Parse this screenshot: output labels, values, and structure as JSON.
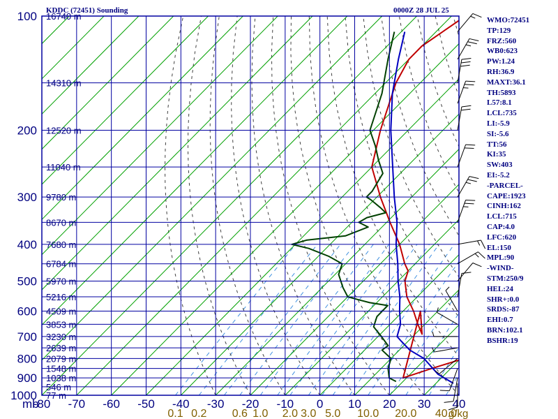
{
  "header": {
    "title": "KDDC (72451) Sounding",
    "valid": "0000Z 28 JUL 25"
  },
  "stats": [
    "WMO:72451",
    "TP:129",
    "FRZ:560",
    "WB0:623",
    "PW:1.24",
    "RH:36.9",
    "MAXT:36.1",
    "TH:5893",
    "L57:8.1",
    "LCL:735",
    "LI:-5.9",
    "SI:-5.6",
    "TT:56",
    "KI:35",
    "SW:403",
    "EI:-5.2",
    "-PARCEL-",
    "CAPE:1923",
    "CINH:162",
    "LCL:715",
    "CAP:4.0",
    "LFC:620",
    "EL:150",
    "MPL:90",
    "-WIND-",
    "STM:250/9",
    "HEL:24",
    "SHR+:0.0",
    "SRDS:-87",
    "EHI:0.7",
    "BRN:102.1",
    "BSHR:19"
  ],
  "colors": {
    "frame": "#0000a0",
    "label": "#000080",
    "temperature": "#c00000",
    "dewpoint": "#004000",
    "parcel": "#0000c0",
    "isotherm": "#00a000",
    "dry_adiabat": "#404040",
    "mixing_ratio": "#4090e0",
    "mixing_ratio_label": "#806000",
    "wind": "#000000"
  },
  "chart_data": {
    "type": "line",
    "title": "KDDC (72451) Sounding",
    "x_unit": "°C",
    "y_unit": "mb",
    "pressure_axis_label": "mb",
    "pressure_ticks": [
      100,
      200,
      300,
      400,
      500,
      600,
      700,
      800,
      900,
      1000
    ],
    "temperature_ticks": [
      -80,
      -70,
      -60,
      -50,
      -40,
      -30,
      -20,
      -10,
      0,
      10,
      20,
      30,
      40
    ],
    "temperature_tick_labels": [
      "-80",
      "-70",
      "-60",
      "-50",
      "-40",
      "-30",
      "-20",
      "-10",
      "0",
      "10",
      "20",
      "30",
      "40"
    ],
    "xlim": [
      -80,
      40
    ],
    "ylim": [
      1000,
      100
    ],
    "height_labels": [
      {
        "p": 100,
        "label": "16740 m"
      },
      {
        "p": 150,
        "label": "14310 m"
      },
      {
        "p": 200,
        "label": "12520 m"
      },
      {
        "p": 250,
        "label": "11040 m"
      },
      {
        "p": 300,
        "label": "9780 m"
      },
      {
        "p": 350,
        "label": "8670 m"
      },
      {
        "p": 400,
        "label": "7680 m"
      },
      {
        "p": 450,
        "label": "6784 m"
      },
      {
        "p": 500,
        "label": "5970 m"
      },
      {
        "p": 550,
        "label": "5216 m"
      },
      {
        "p": 600,
        "label": "4509 m"
      },
      {
        "p": 650,
        "label": "3853 m"
      },
      {
        "p": 700,
        "label": "3230 m"
      },
      {
        "p": 750,
        "label": "2639 m"
      },
      {
        "p": 800,
        "label": "2079 m"
      },
      {
        "p": 850,
        "label": "1548 m"
      },
      {
        "p": 900,
        "label": "1038 m"
      },
      {
        "p": 950,
        "label": "546 m"
      },
      {
        "p": 1000,
        "label": "77 m"
      }
    ],
    "mixing_ratio_labels": [
      {
        "w": 0.1,
        "label": "0.1"
      },
      {
        "w": 0.2,
        "label": "0.2"
      },
      {
        "w": 0.6,
        "label": "0.6"
      },
      {
        "w": 1.0,
        "label": "1.0"
      },
      {
        "w": 2.0,
        "label": "2.0"
      },
      {
        "w": 3.0,
        "label": "3.0"
      },
      {
        "w": 5.0,
        "label": "5.0"
      },
      {
        "w": 10.0,
        "label": "10.0"
      },
      {
        "w": 20.0,
        "label": "20.0"
      },
      {
        "w": 40.0,
        "label": "40.0"
      }
    ],
    "mixing_ratio_unit": "g/kg",
    "isotherm_temps": [
      -180,
      -170,
      -160,
      -150,
      -140,
      -130,
      -120,
      -110,
      -100,
      -90,
      -80,
      -70,
      -60,
      -50,
      -40,
      -30,
      -20,
      -10,
      0,
      10,
      20,
      30,
      40
    ],
    "dry_adiabat_thetas": [
      -30,
      -20,
      -10,
      0,
      10,
      20,
      30,
      40,
      50,
      60,
      70,
      80,
      90,
      100,
      110,
      120,
      130,
      140,
      150,
      160
    ],
    "mixing_ratio_lines": [
      0.1,
      0.2,
      0.4,
      0.6,
      1.0,
      1.5,
      2.0,
      3.0,
      4.0,
      5.0,
      7.0,
      10.0,
      15.0,
      20.0,
      30.0,
      40.0
    ],
    "series": [
      {
        "name": "Temperature",
        "key": "temperature",
        "points": [
          [
            762,
            36.6
          ],
          [
            775,
            34.5
          ],
          [
            800,
            31.0
          ],
          [
            850,
            24.5
          ],
          [
            900,
            19.0
          ],
          [
            600,
            5.0
          ],
          [
            690,
            12.0
          ],
          [
            650,
            8.0
          ],
          [
            600,
            3.0
          ],
          [
            550,
            -3.0
          ],
          [
            500,
            -8.0
          ],
          [
            470,
            -10.0
          ],
          [
            450,
            -13.0
          ],
          [
            400,
            -20.0
          ],
          [
            350,
            -29.0
          ],
          [
            300,
            -39.0
          ],
          [
            250,
            -50.0
          ],
          [
            200,
            -58.0
          ],
          [
            150,
            -67.0
          ],
          [
            130,
            -70.0
          ],
          [
            120,
            -70.0
          ],
          [
            100,
            -66.0
          ]
        ]
      },
      {
        "name": "Dewpoint",
        "key": "dewpoint",
        "points": [
          [
            920,
            18.0
          ],
          [
            900,
            15.0
          ],
          [
            850,
            12.0
          ],
          [
            800,
            10.0
          ],
          [
            760,
            5.0
          ],
          [
            740,
            5.5
          ],
          [
            700,
            1.0
          ],
          [
            660,
            -4.0
          ],
          [
            650,
            -4.5
          ],
          [
            620,
            -6.0
          ],
          [
            580,
            -6.0
          ],
          [
            570,
            -12.0
          ],
          [
            560,
            -16.0
          ],
          [
            550,
            -20.0
          ],
          [
            520,
            -24.0
          ],
          [
            480,
            -29.0
          ],
          [
            450,
            -31.0
          ],
          [
            430,
            -37.0
          ],
          [
            410,
            -45.0
          ],
          [
            400,
            -51.0
          ],
          [
            390,
            -48.0
          ],
          [
            380,
            -38.0
          ],
          [
            360,
            -34.0
          ],
          [
            350,
            -38.0
          ],
          [
            340,
            -37.0
          ],
          [
            330,
            -33.0
          ],
          [
            320,
            -36.0
          ],
          [
            305,
            -41.0
          ],
          [
            300,
            -43.0
          ],
          [
            295,
            -43.0
          ],
          [
            290,
            -43.0
          ],
          [
            260,
            -45.0
          ],
          [
            240,
            -50.0
          ],
          [
            220,
            -55.0
          ],
          [
            200,
            -61.0
          ],
          [
            160,
            -68.0
          ],
          [
            130,
            -76.0
          ],
          [
            110,
            -82.0
          ]
        ]
      },
      {
        "name": "Parcel",
        "key": "parcel",
        "points": [
          [
            930,
            35.0
          ],
          [
            880,
            28.0
          ],
          [
            800,
            19.5
          ],
          [
            760,
            13.0
          ],
          [
            720,
            8.0
          ],
          [
            700,
            5.5
          ],
          [
            650,
            3.0
          ],
          [
            600,
            -1.0
          ],
          [
            550,
            -5.0
          ],
          [
            500,
            -10.0
          ],
          [
            450,
            -15.0
          ],
          [
            400,
            -21.0
          ],
          [
            350,
            -27.0
          ],
          [
            300,
            -35.0
          ],
          [
            250,
            -44.0
          ],
          [
            200,
            -55.0
          ],
          [
            160,
            -65.0
          ],
          [
            130,
            -73.0
          ],
          [
            110,
            -79.0
          ]
        ]
      }
    ],
    "wind_barbs": [
      {
        "p": 930,
        "dir": 180,
        "spd": 10
      },
      {
        "p": 900,
        "dir": 190,
        "spd": 10
      },
      {
        "p": 850,
        "dir": 200,
        "spd": 10
      },
      {
        "p": 800,
        "dir": 230,
        "spd": 5
      },
      {
        "p": 750,
        "dir": 260,
        "spd": 5
      },
      {
        "p": 700,
        "dir": 270,
        "spd": 5
      },
      {
        "p": 650,
        "dir": 300,
        "spd": 5
      },
      {
        "p": 600,
        "dir": 330,
        "spd": 5
      },
      {
        "p": 550,
        "dir": 10,
        "spd": 10
      },
      {
        "p": 500,
        "dir": 40,
        "spd": 10
      },
      {
        "p": 450,
        "dir": 60,
        "spd": 15
      },
      {
        "p": 400,
        "dir": 80,
        "spd": 15
      },
      {
        "p": 350,
        "dir": 20,
        "spd": 25
      },
      {
        "p": 300,
        "dir": 30,
        "spd": 25
      },
      {
        "p": 250,
        "dir": 20,
        "spd": 20
      },
      {
        "p": 200,
        "dir": 10,
        "spd": 20
      },
      {
        "p": 170,
        "dir": 20,
        "spd": 25
      },
      {
        "p": 150,
        "dir": 10,
        "spd": 30
      },
      {
        "p": 130,
        "dir": 30,
        "spd": 25
      },
      {
        "p": 110,
        "dir": 40,
        "spd": 15
      }
    ],
    "grid": true,
    "legend": "none"
  }
}
